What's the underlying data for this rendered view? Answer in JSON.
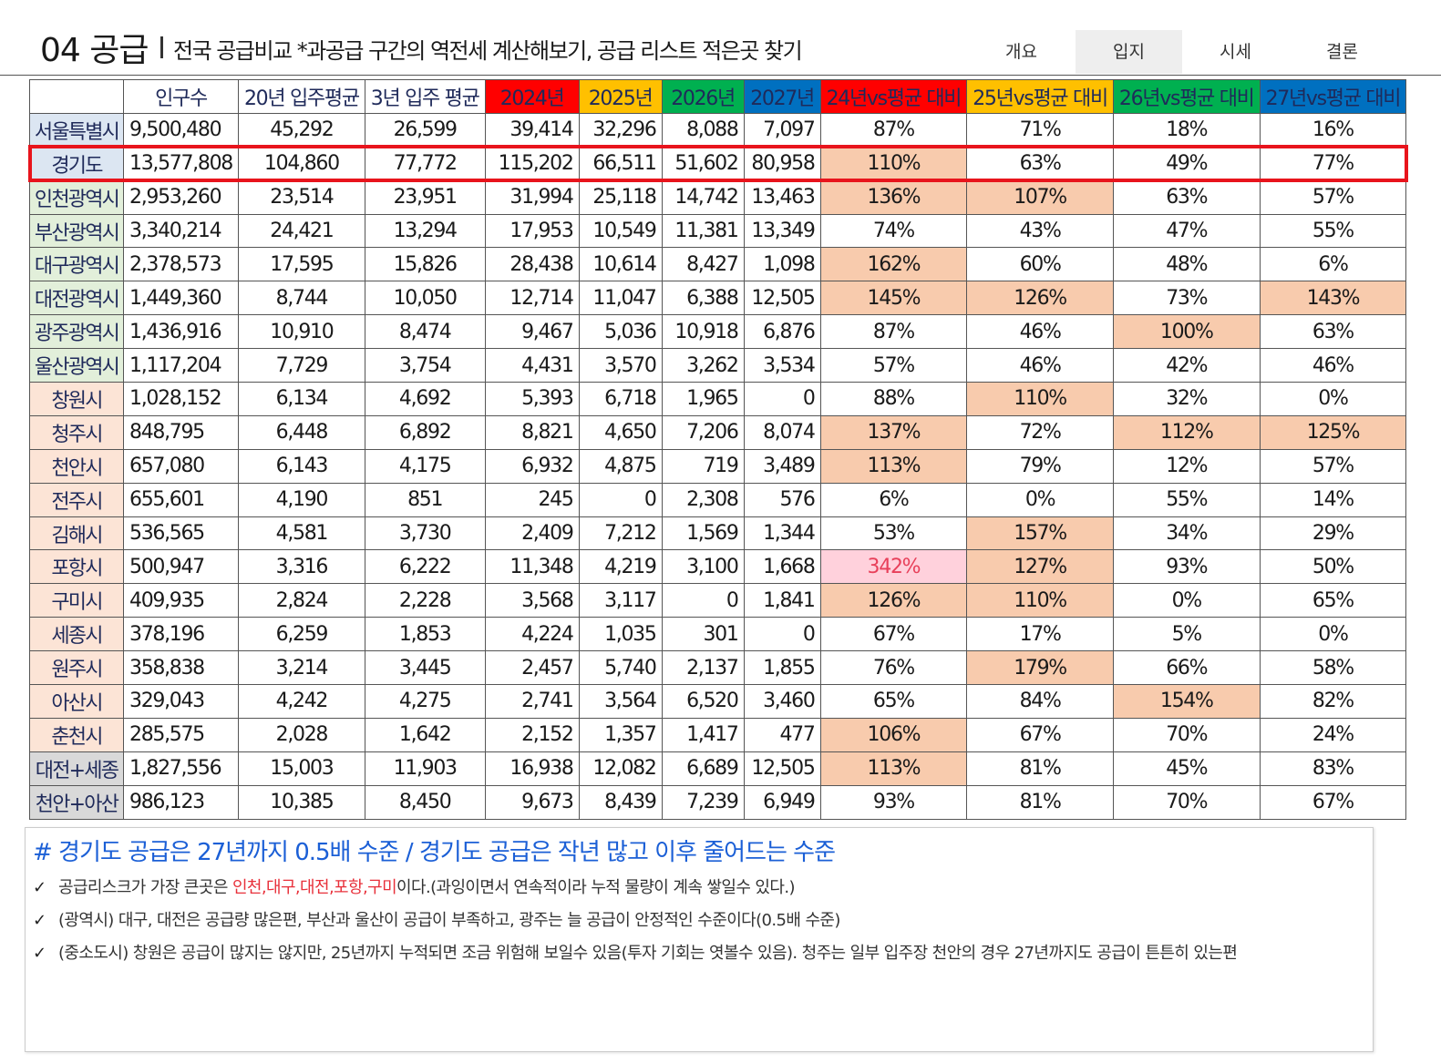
{
  "header": {
    "title": "04 공급",
    "subtitle": "전국 공급비교 *과공급 구간의 역전세 계산해보기, 공급 리스트 적은곳 찾기",
    "tabs": [
      "개요",
      "입지",
      "시세",
      "결론"
    ]
  },
  "table": {
    "columns": [
      "인구수",
      "20년 입주평균",
      "3년 입주 평균",
      {
        "text": "2024년",
        "fill": "#ff0000"
      },
      {
        "text": "2025년",
        "fill": "#ffc000"
      },
      {
        "text": "2026년",
        "fill": "#00b050"
      },
      {
        "text": "2027년",
        "fill": "#0070c0"
      },
      {
        "text": "24년vs평균 대비",
        "fill": "#ff0000"
      },
      {
        "text": "25년vs평균 대비",
        "fill": "#ffc000"
      },
      {
        "text": "26년vs평균 대비",
        "fill": "#00b050"
      },
      {
        "text": "27년vs평균 대비",
        "fill": "#0070c0"
      }
    ],
    "rows": [
      {
        "label": "서울특별시",
        "label_fill": "#dce6f2",
        "cells": [
          "9,500,480",
          "45,292",
          "26,599",
          "39,414",
          "32,296",
          "8,088",
          "7,097",
          "87%",
          "71%",
          "18%",
          "16%"
        ]
      },
      {
        "label": "경기도",
        "label_fill": "#dce6f2",
        "outline": "#e8141c",
        "cells": [
          "13,577,808",
          "104,860",
          "77,772",
          "115,202",
          "66,511",
          "51,602",
          "80,958",
          {
            "text": "110%",
            "fill": "#f8cbad"
          },
          "63%",
          "49%",
          "77%"
        ]
      },
      {
        "label": "인천광역시",
        "label_fill": "#e2efda",
        "cells": [
          "2,953,260",
          "23,514",
          "23,951",
          "31,994",
          "25,118",
          "14,742",
          "13,463",
          {
            "text": "136%",
            "fill": "#f8cbad"
          },
          {
            "text": "107%",
            "fill": "#f8cbad"
          },
          "63%",
          "57%"
        ]
      },
      {
        "label": "부산광역시",
        "label_fill": "#e2efda",
        "cells": [
          "3,340,214",
          "24,421",
          "13,294",
          "17,953",
          "10,549",
          "11,381",
          "13,349",
          "74%",
          "43%",
          "47%",
          "55%"
        ]
      },
      {
        "label": "대구광역시",
        "label_fill": "#e2efda",
        "cells": [
          "2,378,573",
          "17,595",
          "15,826",
          "28,438",
          "10,614",
          "8,427",
          "1,098",
          {
            "text": "162%",
            "fill": "#f8cbad"
          },
          "60%",
          "48%",
          "6%"
        ]
      },
      {
        "label": "대전광역시",
        "label_fill": "#e2efda",
        "cells": [
          "1,449,360",
          "8,744",
          "10,050",
          "12,714",
          "11,047",
          "6,388",
          "12,505",
          {
            "text": "145%",
            "fill": "#f8cbad"
          },
          {
            "text": "126%",
            "fill": "#f8cbad"
          },
          "73%",
          {
            "text": "143%",
            "fill": "#f8cbad"
          }
        ]
      },
      {
        "label": "광주광역시",
        "label_fill": "#e2efda",
        "cells": [
          "1,436,916",
          "10,910",
          "8,474",
          "9,467",
          "5,036",
          "10,918",
          "6,876",
          "87%",
          "46%",
          {
            "text": "100%",
            "fill": "#f8cbad"
          },
          "63%"
        ]
      },
      {
        "label": "울산광역시",
        "label_fill": "#e2efda",
        "cells": [
          "1,117,204",
          "7,729",
          "3,754",
          "4,431",
          "3,570",
          "3,262",
          "3,534",
          "57%",
          "46%",
          "42%",
          "46%"
        ]
      },
      {
        "label": "창원시",
        "label_fill": "#fce4d6",
        "cells": [
          "1,028,152",
          "6,134",
          "4,692",
          "5,393",
          "6,718",
          "1,965",
          "0",
          "88%",
          {
            "text": "110%",
            "fill": "#f8cbad"
          },
          "32%",
          "0%"
        ]
      },
      {
        "label": "청주시",
        "label_fill": "#fce4d6",
        "cells": [
          "848,795",
          "6,448",
          "6,892",
          "8,821",
          "4,650",
          "7,206",
          "8,074",
          {
            "text": "137%",
            "fill": "#f8cbad"
          },
          "72%",
          {
            "text": "112%",
            "fill": "#f8cbad"
          },
          {
            "text": "125%",
            "fill": "#f8cbad"
          }
        ]
      },
      {
        "label": "천안시",
        "label_fill": "#fce4d6",
        "cells": [
          "657,080",
          "6,143",
          "4,175",
          "6,932",
          "4,875",
          "719",
          "3,489",
          {
            "text": "113%",
            "fill": "#f8cbad"
          },
          "79%",
          "12%",
          "57%"
        ]
      },
      {
        "label": "전주시",
        "label_fill": "#fce4d6",
        "cells": [
          "655,601",
          "4,190",
          "851",
          "245",
          "0",
          "2,308",
          "576",
          "6%",
          "0%",
          "55%",
          "14%"
        ]
      },
      {
        "label": "김해시",
        "label_fill": "#fce4d6",
        "cells": [
          "536,565",
          "4,581",
          "3,730",
          "2,409",
          "7,212",
          "1,569",
          "1,344",
          "53%",
          {
            "text": "157%",
            "fill": "#f8cbad"
          },
          "34%",
          "29%"
        ]
      },
      {
        "label": "포항시",
        "label_fill": "#fce4d6",
        "cells": [
          "500,947",
          "3,316",
          "6,222",
          "11,348",
          "4,219",
          "3,100",
          "1,668",
          {
            "text": "342%",
            "fill": "#ffd1dc",
            "color": "#e8405a"
          },
          {
            "text": "127%",
            "fill": "#f8cbad"
          },
          "93%",
          "50%"
        ]
      },
      {
        "label": "구미시",
        "label_fill": "#fce4d6",
        "cells": [
          "409,935",
          "2,824",
          "2,228",
          "3,568",
          "3,117",
          "0",
          "1,841",
          {
            "text": "126%",
            "fill": "#f8cbad"
          },
          {
            "text": "110%",
            "fill": "#f8cbad"
          },
          "0%",
          "65%"
        ]
      },
      {
        "label": "세종시",
        "label_fill": "#fce4d6",
        "cells": [
          "378,196",
          "6,259",
          "1,853",
          "4,224",
          "1,035",
          "301",
          "0",
          "67%",
          "17%",
          "5%",
          "0%"
        ]
      },
      {
        "label": "원주시",
        "label_fill": "#fce4d6",
        "cells": [
          "358,838",
          "3,214",
          "3,445",
          "2,457",
          "5,740",
          "2,137",
          "1,855",
          "76%",
          {
            "text": "179%",
            "fill": "#f8cbad"
          },
          "66%",
          "58%"
        ]
      },
      {
        "label": "아산시",
        "label_fill": "#fce4d6",
        "cells": [
          "329,043",
          "4,242",
          "4,275",
          "2,741",
          "3,564",
          "6,520",
          "3,460",
          "65%",
          "84%",
          {
            "text": "154%",
            "fill": "#f8cbad"
          },
          "82%"
        ]
      },
      {
        "label": "춘천시",
        "label_fill": "#fce4d6",
        "cells": [
          "285,575",
          "2,028",
          "1,642",
          "2,152",
          "1,357",
          "1,417",
          "477",
          {
            "text": "106%",
            "fill": "#f8cbad"
          },
          "67%",
          "70%",
          "24%"
        ]
      },
      {
        "label": "대전+세종",
        "label_fill": "#d9d9d9",
        "cells": [
          "1,827,556",
          "15,003",
          "11,903",
          "16,938",
          "12,082",
          "6,689",
          "12,505",
          {
            "text": "113%",
            "fill": "#f8cbad"
          },
          "81%",
          "45%",
          "83%"
        ]
      },
      {
        "label": "천안+아산",
        "label_fill": "#d9d9d9",
        "cells": [
          "986,123",
          "10,385",
          "8,450",
          "9,673",
          "8,439",
          "7,239",
          "6,949",
          "93%",
          "81%",
          "70%",
          "67%"
        ]
      }
    ]
  },
  "notes": {
    "heading": "# 경기도 공급은 27년까지 0.5배 수준 / 경기도 공급은 작년 많고 이후 줄어드는 수준",
    "items": [
      [
        "공급리스크가 가장 큰곳은 ",
        "인천,대구,대전,포항,구미",
        "이다.(과잉이면서 연속적이라 누적 물량이 계속 쌓일수 있다.)"
      ],
      [
        "(광역시) 대구, 대전은 공급량 많은편, 부산과 울산이 공급이 부족하고, 광주는 늘 공급이 안정적인 수준이다(0.5배 수준)"
      ],
      [
        "(중소도시) 창원은 공급이 많지는 않지만, 25년까지 누적되면 조금 위험해 보일수 있음(투자 기회는 엿볼수 있음). 청주는 일부 입주장 천안의 경우 27년까지도 공급이 튼튼히 있는편"
      ]
    ]
  }
}
